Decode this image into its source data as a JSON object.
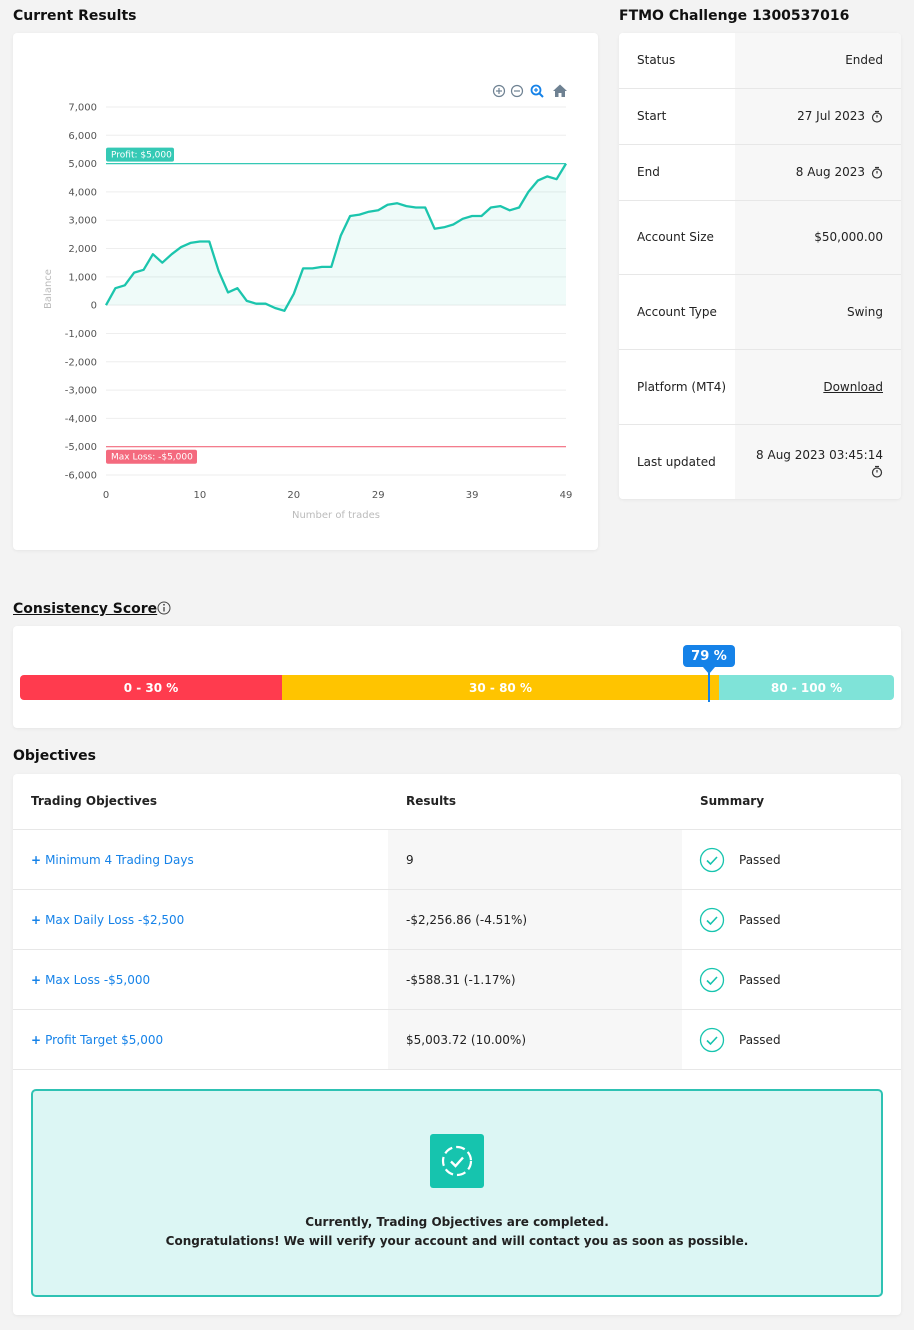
{
  "sections": {
    "current_results": "Current Results",
    "challenge_title": "FTMO Challenge 1300537016",
    "consistency": "Consistency Score",
    "objectives": "Objectives"
  },
  "chart_data": {
    "type": "line",
    "xlabel": "Number of trades",
    "ylabel": "Balance",
    "ylim": [
      -6000,
      7000
    ],
    "xlim": [
      0,
      49
    ],
    "x_ticks": [
      "0",
      "10",
      "20",
      "29",
      "39",
      "49"
    ],
    "y_ticks": [
      "7,000",
      "6,000",
      "5,000",
      "4,000",
      "3,000",
      "2,000",
      "1,000",
      "0",
      "-1,000",
      "-2,000",
      "-3,000",
      "-4,000",
      "-5,000",
      "-6,000"
    ],
    "series": [
      {
        "x": [
          0,
          1,
          2,
          3,
          4,
          5,
          6,
          7,
          8,
          9,
          10,
          11,
          12,
          13,
          14,
          15,
          16,
          17,
          18,
          19,
          20,
          21,
          22,
          23,
          24,
          25,
          26,
          27,
          28,
          29,
          30,
          31,
          32,
          33,
          34,
          35,
          36,
          37,
          38,
          39,
          40,
          41,
          42,
          43,
          44,
          45,
          46,
          47,
          48,
          49
        ],
        "values": [
          0,
          600,
          700,
          1150,
          1250,
          1800,
          1500,
          1800,
          2050,
          2200,
          2250,
          2250,
          1200,
          450,
          600,
          150,
          50,
          50,
          -100,
          -200,
          400,
          1300,
          1300,
          1350,
          1350,
          2450,
          3150,
          3200,
          3300,
          3350,
          3550,
          3600,
          3500,
          3450,
          3450,
          2700,
          2750,
          2850,
          3050,
          3150,
          3150,
          3450,
          3500,
          3350,
          3450,
          4000,
          4400,
          4550,
          4450,
          5000
        ]
      }
    ],
    "annotations": [
      {
        "label": "Profit: $5,000",
        "y": 5000,
        "color": "#35c9b5"
      },
      {
        "label": "Max Loss: -$5,000",
        "y": -5000,
        "color": "#f46a7e"
      }
    ],
    "grid": true
  },
  "info": [
    {
      "label": "Status",
      "value": "Ended"
    },
    {
      "label": "Start",
      "value": "27 Jul 2023"
    },
    {
      "label": "End",
      "value": "8 Aug 2023"
    },
    {
      "label": "Account Size",
      "value": "$50,000.00"
    },
    {
      "label": "Account Type",
      "value": "Swing"
    },
    {
      "label": "Platform (MT4)",
      "value": "Download"
    },
    {
      "label": "Last updated",
      "value": "8 Aug 2023 03:45:14"
    }
  ],
  "consistency": {
    "score": 79,
    "score_label": "79 %",
    "segments": [
      {
        "label": "0 - 30 %",
        "color": "#ff3b4e"
      },
      {
        "label": "30 - 80 %",
        "color": "#ffc400"
      },
      {
        "label": "80 - 100 %",
        "color": "#7fe3d8"
      }
    ]
  },
  "objectives": {
    "headers": [
      "Trading Objectives",
      "Results",
      "Summary"
    ],
    "rows": [
      {
        "objective": "Minimum 4 Trading Days",
        "result": "9",
        "summary": "Passed"
      },
      {
        "objective": "Max Daily Loss -$2,500",
        "result": "-$2,256.86 (-4.51%)",
        "summary": "Passed"
      },
      {
        "objective": "Max Loss -$5,000",
        "result": "-$588.31 (-1.17%)",
        "summary": "Passed"
      },
      {
        "objective": "Profit Target $5,000",
        "result": "$5,003.72 (10.00%)",
        "summary": "Passed"
      }
    ],
    "plus": "+",
    "completed_line1": "Currently, Trading Objectives are completed.",
    "completed_line2": "Congratulations! We will verify your account and will contact you as soon as possible."
  },
  "colors": {
    "accent": "#16c4ae",
    "link": "#1582e8"
  }
}
